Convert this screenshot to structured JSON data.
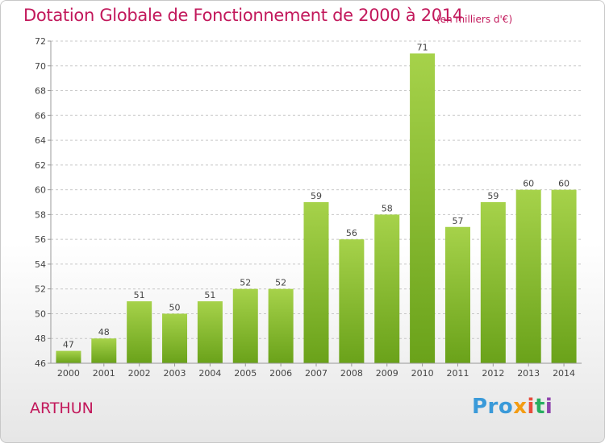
{
  "title": "Dotation Globale de Fonctionnement de 2000 à 2014",
  "subtitle": "(en milliers d'€)",
  "commune": "ARTHUN",
  "logo": {
    "p1": "Pro",
    "p2": "x",
    "p3": "i",
    "p4": "t",
    "p5": "i"
  },
  "colors": {
    "title": "#c2185b",
    "bar_top": "#a6d24a",
    "bar_bottom": "#6aa21a",
    "grid": "#c8c8c8"
  },
  "chart_data": {
    "type": "bar",
    "categories": [
      "2000",
      "2001",
      "2002",
      "2003",
      "2004",
      "2005",
      "2006",
      "2007",
      "2008",
      "2009",
      "2010",
      "2011",
      "2012",
      "2013",
      "2014"
    ],
    "values": [
      47,
      48,
      51,
      50,
      51,
      52,
      52,
      59,
      56,
      58,
      71,
      57,
      59,
      60,
      60
    ],
    "ylim": [
      46,
      72
    ],
    "yticks": [
      46,
      48,
      50,
      52,
      54,
      56,
      58,
      60,
      62,
      64,
      66,
      68,
      70,
      72
    ],
    "grid": true,
    "data_labels": true
  }
}
